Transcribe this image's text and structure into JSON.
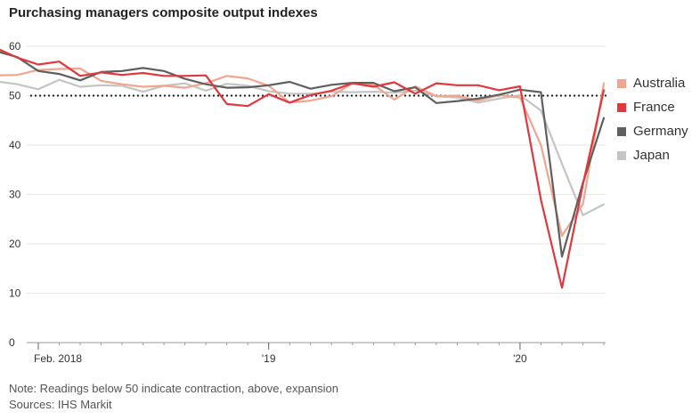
{
  "chart_data": {
    "type": "line",
    "title": "Purchasing managers composite output indexes",
    "x_start": "2018-02",
    "x_end": "2020-05",
    "x_labels": [
      {
        "date": "2018-02",
        "label": "Feb. 2018"
      },
      {
        "date": "2019-01",
        "label": "'19"
      },
      {
        "date": "2020-01",
        "label": "'20"
      }
    ],
    "y_ticks": [
      0,
      10,
      20,
      30,
      40,
      50,
      60
    ],
    "ylim": [
      0,
      62
    ],
    "reference_line": 50,
    "grid": true,
    "legend_position": "right",
    "series": [
      {
        "name": "Australia",
        "color": "#f2a58e",
        "x": [
          "2017-12",
          "2018-01",
          "2018-02",
          "2018-03",
          "2018-04",
          "2018-05",
          "2018-06",
          "2018-07",
          "2018-08",
          "2018-09",
          "2018-10",
          "2018-11",
          "2018-12",
          "2019-01",
          "2019-02",
          "2019-03",
          "2019-04",
          "2019-05",
          "2019-06",
          "2019-07",
          "2019-08",
          "2019-09",
          "2019-10",
          "2019-11",
          "2019-12",
          "2020-01",
          "2020-02",
          "2020-03",
          "2020-04",
          "2020-05"
        ],
        "values": [
          54.1,
          54.2,
          55.2,
          55.4,
          55.5,
          53.0,
          52.3,
          51.8,
          52.0,
          51.6,
          52.5,
          54.0,
          53.5,
          52.0,
          48.6,
          49.0,
          49.9,
          52.5,
          52.2,
          49.2,
          51.9,
          49.9,
          50.0,
          49.0,
          50.1,
          49.6,
          40.0,
          21.6,
          28.0,
          52.5
        ]
      },
      {
        "name": "France",
        "color": "#e0383d",
        "x": [
          "2017-12",
          "2018-01",
          "2018-02",
          "2018-03",
          "2018-04",
          "2018-05",
          "2018-06",
          "2018-07",
          "2018-08",
          "2018-09",
          "2018-10",
          "2018-11",
          "2018-12",
          "2019-01",
          "2019-02",
          "2019-03",
          "2019-04",
          "2019-05",
          "2019-06",
          "2019-07",
          "2019-08",
          "2019-09",
          "2019-10",
          "2019-11",
          "2019-12",
          "2020-01",
          "2020-02",
          "2020-03",
          "2020-04",
          "2020-05"
        ],
        "values": [
          59.6,
          57.7,
          56.3,
          56.9,
          54.0,
          54.7,
          54.2,
          54.6,
          54.0,
          54.0,
          54.1,
          48.3,
          47.9,
          50.3,
          48.6,
          50.1,
          51.0,
          52.5,
          51.8,
          52.7,
          50.4,
          52.5,
          52.1,
          52.1,
          51.1,
          51.9,
          28.9,
          11.1,
          32.0,
          51.1
        ]
      },
      {
        "name": "Germany",
        "color": "#5f5f5f",
        "x": [
          "2017-12",
          "2018-01",
          "2018-02",
          "2018-03",
          "2018-04",
          "2018-05",
          "2018-06",
          "2018-07",
          "2018-08",
          "2018-09",
          "2018-10",
          "2018-11",
          "2018-12",
          "2019-01",
          "2019-02",
          "2019-03",
          "2019-04",
          "2019-05",
          "2019-06",
          "2019-07",
          "2019-08",
          "2019-09",
          "2019-10",
          "2019-11",
          "2019-12",
          "2020-01",
          "2020-02",
          "2020-03",
          "2020-04",
          "2020-05"
        ],
        "values": [
          59.0,
          57.8,
          55.0,
          54.4,
          53.1,
          54.8,
          55.0,
          55.6,
          55.0,
          53.4,
          52.3,
          51.6,
          51.7,
          52.1,
          52.8,
          51.4,
          52.2,
          52.6,
          52.6,
          50.9,
          51.7,
          48.5,
          48.9,
          49.4,
          50.2,
          51.2,
          50.7,
          17.4,
          32.3,
          45.5
        ]
      },
      {
        "name": "Japan",
        "color": "#c4c4c4",
        "x": [
          "2017-12",
          "2018-01",
          "2018-02",
          "2018-03",
          "2018-04",
          "2018-05",
          "2018-06",
          "2018-07",
          "2018-08",
          "2018-09",
          "2018-10",
          "2018-11",
          "2018-12",
          "2019-01",
          "2019-02",
          "2019-03",
          "2019-04",
          "2019-05",
          "2019-06",
          "2019-07",
          "2019-08",
          "2019-09",
          "2019-10",
          "2019-11",
          "2019-12",
          "2020-01",
          "2020-02",
          "2020-03",
          "2020-04",
          "2020-05"
        ],
        "values": [
          52.9,
          52.3,
          51.3,
          53.2,
          51.8,
          52.1,
          52.0,
          50.8,
          52.0,
          52.5,
          51.0,
          52.4,
          52.0,
          50.9,
          50.4,
          50.4,
          50.8,
          50.7,
          50.8,
          50.6,
          51.0,
          49.9,
          49.6,
          48.6,
          49.4,
          50.1,
          47.0,
          36.2,
          25.8,
          28.0
        ]
      }
    ]
  },
  "footnotes": {
    "note": "Note: Readings below 50 indicate contraction, above, expansion",
    "sources": "Sources: IHS Markit"
  }
}
